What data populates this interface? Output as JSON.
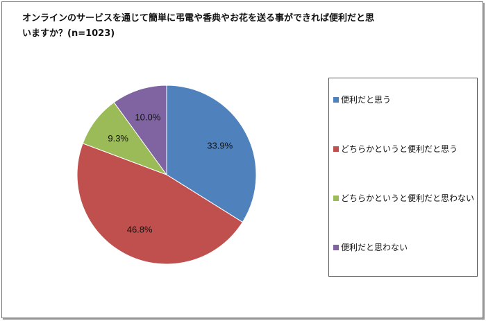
{
  "chart_data": {
    "type": "pie",
    "title": "オンラインのサービスを通じて簡単に弔電や香典やお花を送る事ができれば便利だと思いますか？(n=1023)",
    "title_lines": [
      "オンラインのサービスを通じて簡単に弔電や香典やお花を送る事ができれば便利だと思",
      "いますか？(n=1023)"
    ],
    "start": "top, clockwise",
    "legend_position": "right",
    "slices": [
      {
        "label": "便利だと思う",
        "value": 33.9,
        "data_label": "33.9%",
        "color": "#4F81BD"
      },
      {
        "label": "どちらかというと便利だと思う",
        "value": 46.8,
        "data_label": "46.8%",
        "color": "#C0504D"
      },
      {
        "label": "どちらかというと便利だと思わない",
        "value": 9.3,
        "data_label": "9.3%",
        "color": "#9BBB59"
      },
      {
        "label": "便利だと思わない",
        "value": 10.0,
        "data_label": "10.0%",
        "color": "#8064A2"
      }
    ]
  }
}
